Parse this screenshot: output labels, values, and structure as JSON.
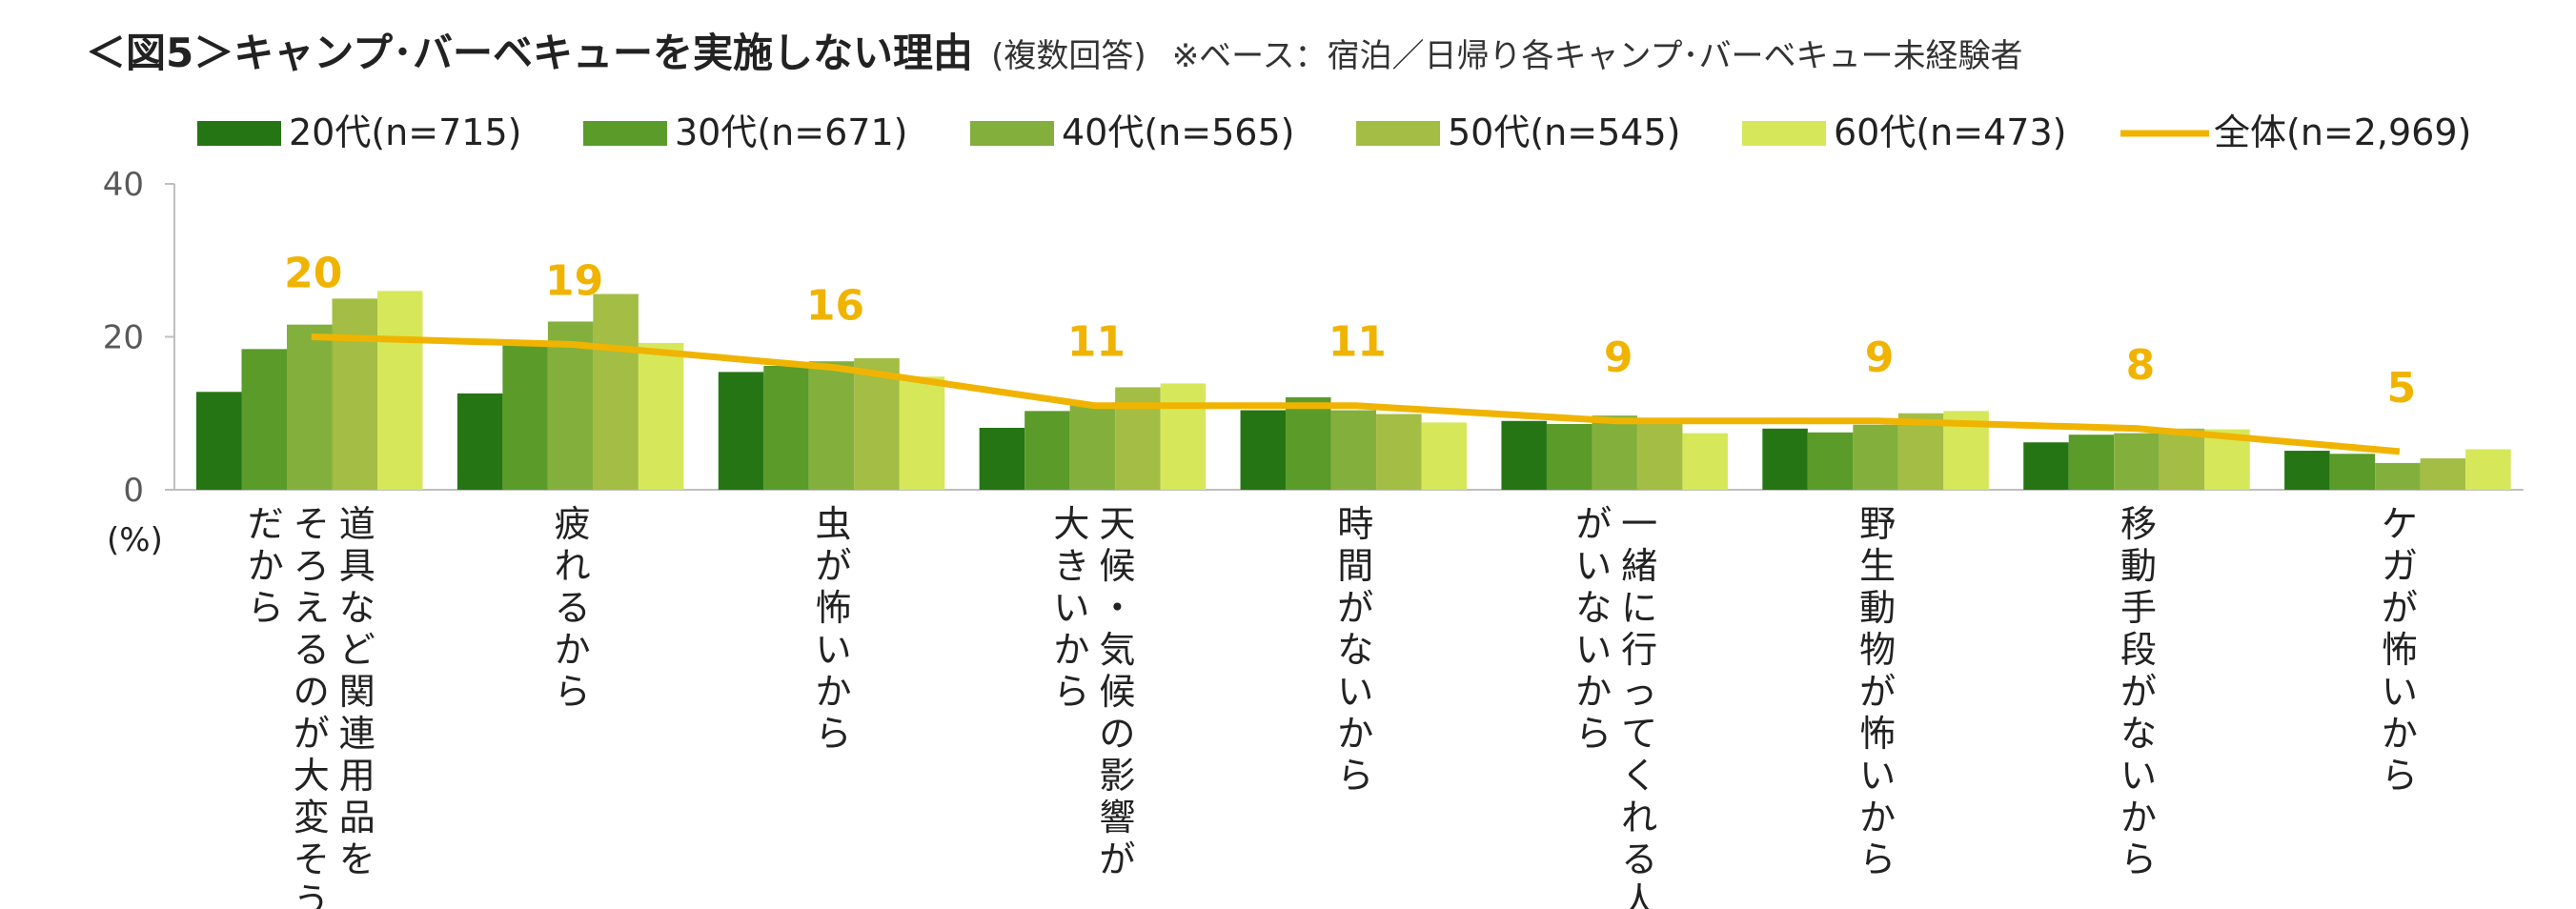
{
  "header": {
    "title": "＜図5＞キャンプ･バーベキューを実施しない理由",
    "note": "(複数回答)",
    "base": "※ベース：宿泊／日帰り各キャンプ･バーベキュー未経験者"
  },
  "colors": {
    "age20": "#267514",
    "age30": "#5a9b2a",
    "age40": "#83b03c",
    "age50": "#a3bd45",
    "age60": "#d6e85a",
    "total": "#f0b400",
    "axis": "#bfbfbf",
    "text": "#222222",
    "tick": "#595959"
  },
  "chart_data": {
    "type": "bar",
    "title": "＜図5＞キャンプ･バーベキューを実施しない理由",
    "ylabel": "(%)",
    "ylim": [
      0,
      40
    ],
    "yticks": [
      "0",
      "20",
      "40"
    ],
    "grid": false,
    "legend_position": "top",
    "categories": [
      "道具など関連用品をそろえるのが大変そうだから",
      "疲れるから",
      "虫が怖いから",
      "天候・気候の影響が大きいから",
      "時間がないから",
      "一緒に行ってくれる人がいないから",
      "野生動物が怖いから",
      "移動手段がないから",
      "ケガが怖いから"
    ],
    "category_lines": [
      [
        "道具など関連用品を",
        "そろえるのが大変そう",
        "だから"
      ],
      [
        "疲れるから"
      ],
      [
        "虫が怖いから"
      ],
      [
        "天候・気候の影響が",
        "大きいから"
      ],
      [
        "時間がないから"
      ],
      [
        "一緒に行ってくれる人",
        "がいないから"
      ],
      [
        "野生動物が怖いから"
      ],
      [
        "移動手段がないから"
      ],
      [
        "ケガが怖いから"
      ]
    ],
    "series": [
      {
        "name": "20代(n=715)",
        "color_key": "age20",
        "values": [
          12.8,
          12.6,
          15.4,
          8.1,
          10.4,
          9.0,
          8.0,
          6.2,
          5.1
        ]
      },
      {
        "name": "30代(n=671)",
        "color_key": "age30",
        "values": [
          18.4,
          19.0,
          16.2,
          10.3,
          12.1,
          8.6,
          7.5,
          7.2,
          4.7
        ]
      },
      {
        "name": "40代(n=565)",
        "color_key": "age40",
        "values": [
          21.6,
          22.0,
          16.8,
          11.1,
          10.4,
          9.7,
          8.5,
          7.4,
          3.5
        ]
      },
      {
        "name": "50代(n=545)",
        "color_key": "age50",
        "values": [
          25.0,
          25.6,
          17.2,
          13.4,
          9.9,
          9.0,
          10.0,
          8.0,
          4.1
        ]
      },
      {
        "name": "60代(n=473)",
        "color_key": "age60",
        "values": [
          26.0,
          19.2,
          14.8,
          13.9,
          8.8,
          7.4,
          10.3,
          7.9,
          5.3
        ]
      }
    ],
    "line_series": {
      "name": "全体(n=2,969)",
      "color_key": "total",
      "values": [
        20,
        19,
        16,
        11,
        11,
        9,
        9,
        8,
        5
      ],
      "labels": [
        "20",
        "19",
        "16",
        "11",
        "11",
        "9",
        "9",
        "8",
        "5"
      ]
    }
  }
}
